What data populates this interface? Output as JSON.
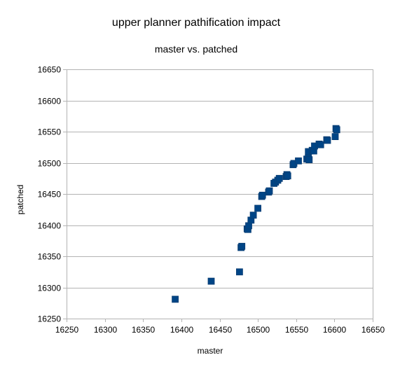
{
  "chart_data": {
    "type": "scatter",
    "title": "upper planner pathification impact",
    "subtitle": "master vs. patched",
    "xlabel": "master",
    "ylabel": "patched",
    "xlim": [
      16250,
      16650
    ],
    "ylim": [
      16250,
      16650
    ],
    "xticks": [
      16250,
      16300,
      16350,
      16400,
      16450,
      16500,
      16550,
      16600,
      16650
    ],
    "yticks": [
      16250,
      16300,
      16350,
      16400,
      16450,
      16500,
      16550,
      16600,
      16650
    ],
    "grid": "horizontal",
    "legend": "none",
    "marker": "square",
    "color": "#004586",
    "points": [
      [
        16392,
        16281
      ],
      [
        16439,
        16310
      ],
      [
        16476,
        16325
      ],
      [
        16478,
        16364
      ],
      [
        16479,
        16366
      ],
      [
        16486,
        16394
      ],
      [
        16487,
        16393
      ],
      [
        16488,
        16399
      ],
      [
        16491,
        16408
      ],
      [
        16494,
        16416
      ],
      [
        16500,
        16427
      ],
      [
        16505,
        16446
      ],
      [
        16506,
        16448
      ],
      [
        16514,
        16453
      ],
      [
        16515,
        16455
      ],
      [
        16521,
        16467
      ],
      [
        16523,
        16469
      ],
      [
        16526,
        16472
      ],
      [
        16528,
        16475
      ],
      [
        16537,
        16478
      ],
      [
        16538,
        16481
      ],
      [
        16539,
        16479
      ],
      [
        16546,
        16497
      ],
      [
        16547,
        16499
      ],
      [
        16553,
        16503
      ],
      [
        16564,
        16506
      ],
      [
        16566,
        16508
      ],
      [
        16567,
        16505
      ],
      [
        16566,
        16518
      ],
      [
        16571,
        16520
      ],
      [
        16573,
        16519
      ],
      [
        16574,
        16527
      ],
      [
        16580,
        16530
      ],
      [
        16582,
        16529
      ],
      [
        16590,
        16537
      ],
      [
        16591,
        16536
      ],
      [
        16601,
        16542
      ],
      [
        16602,
        16555
      ],
      [
        16603,
        16553
      ]
    ]
  }
}
